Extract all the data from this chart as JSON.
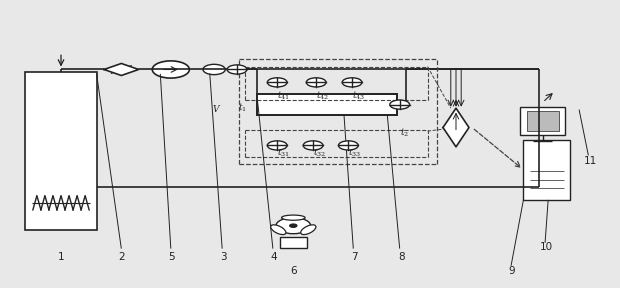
{
  "bg_color": "#e8e8e8",
  "line_color": "#222222",
  "dashed_color": "#444444",
  "label_color": "#111111",
  "fig_width": 6.2,
  "fig_height": 2.88,
  "dpi": 100
}
